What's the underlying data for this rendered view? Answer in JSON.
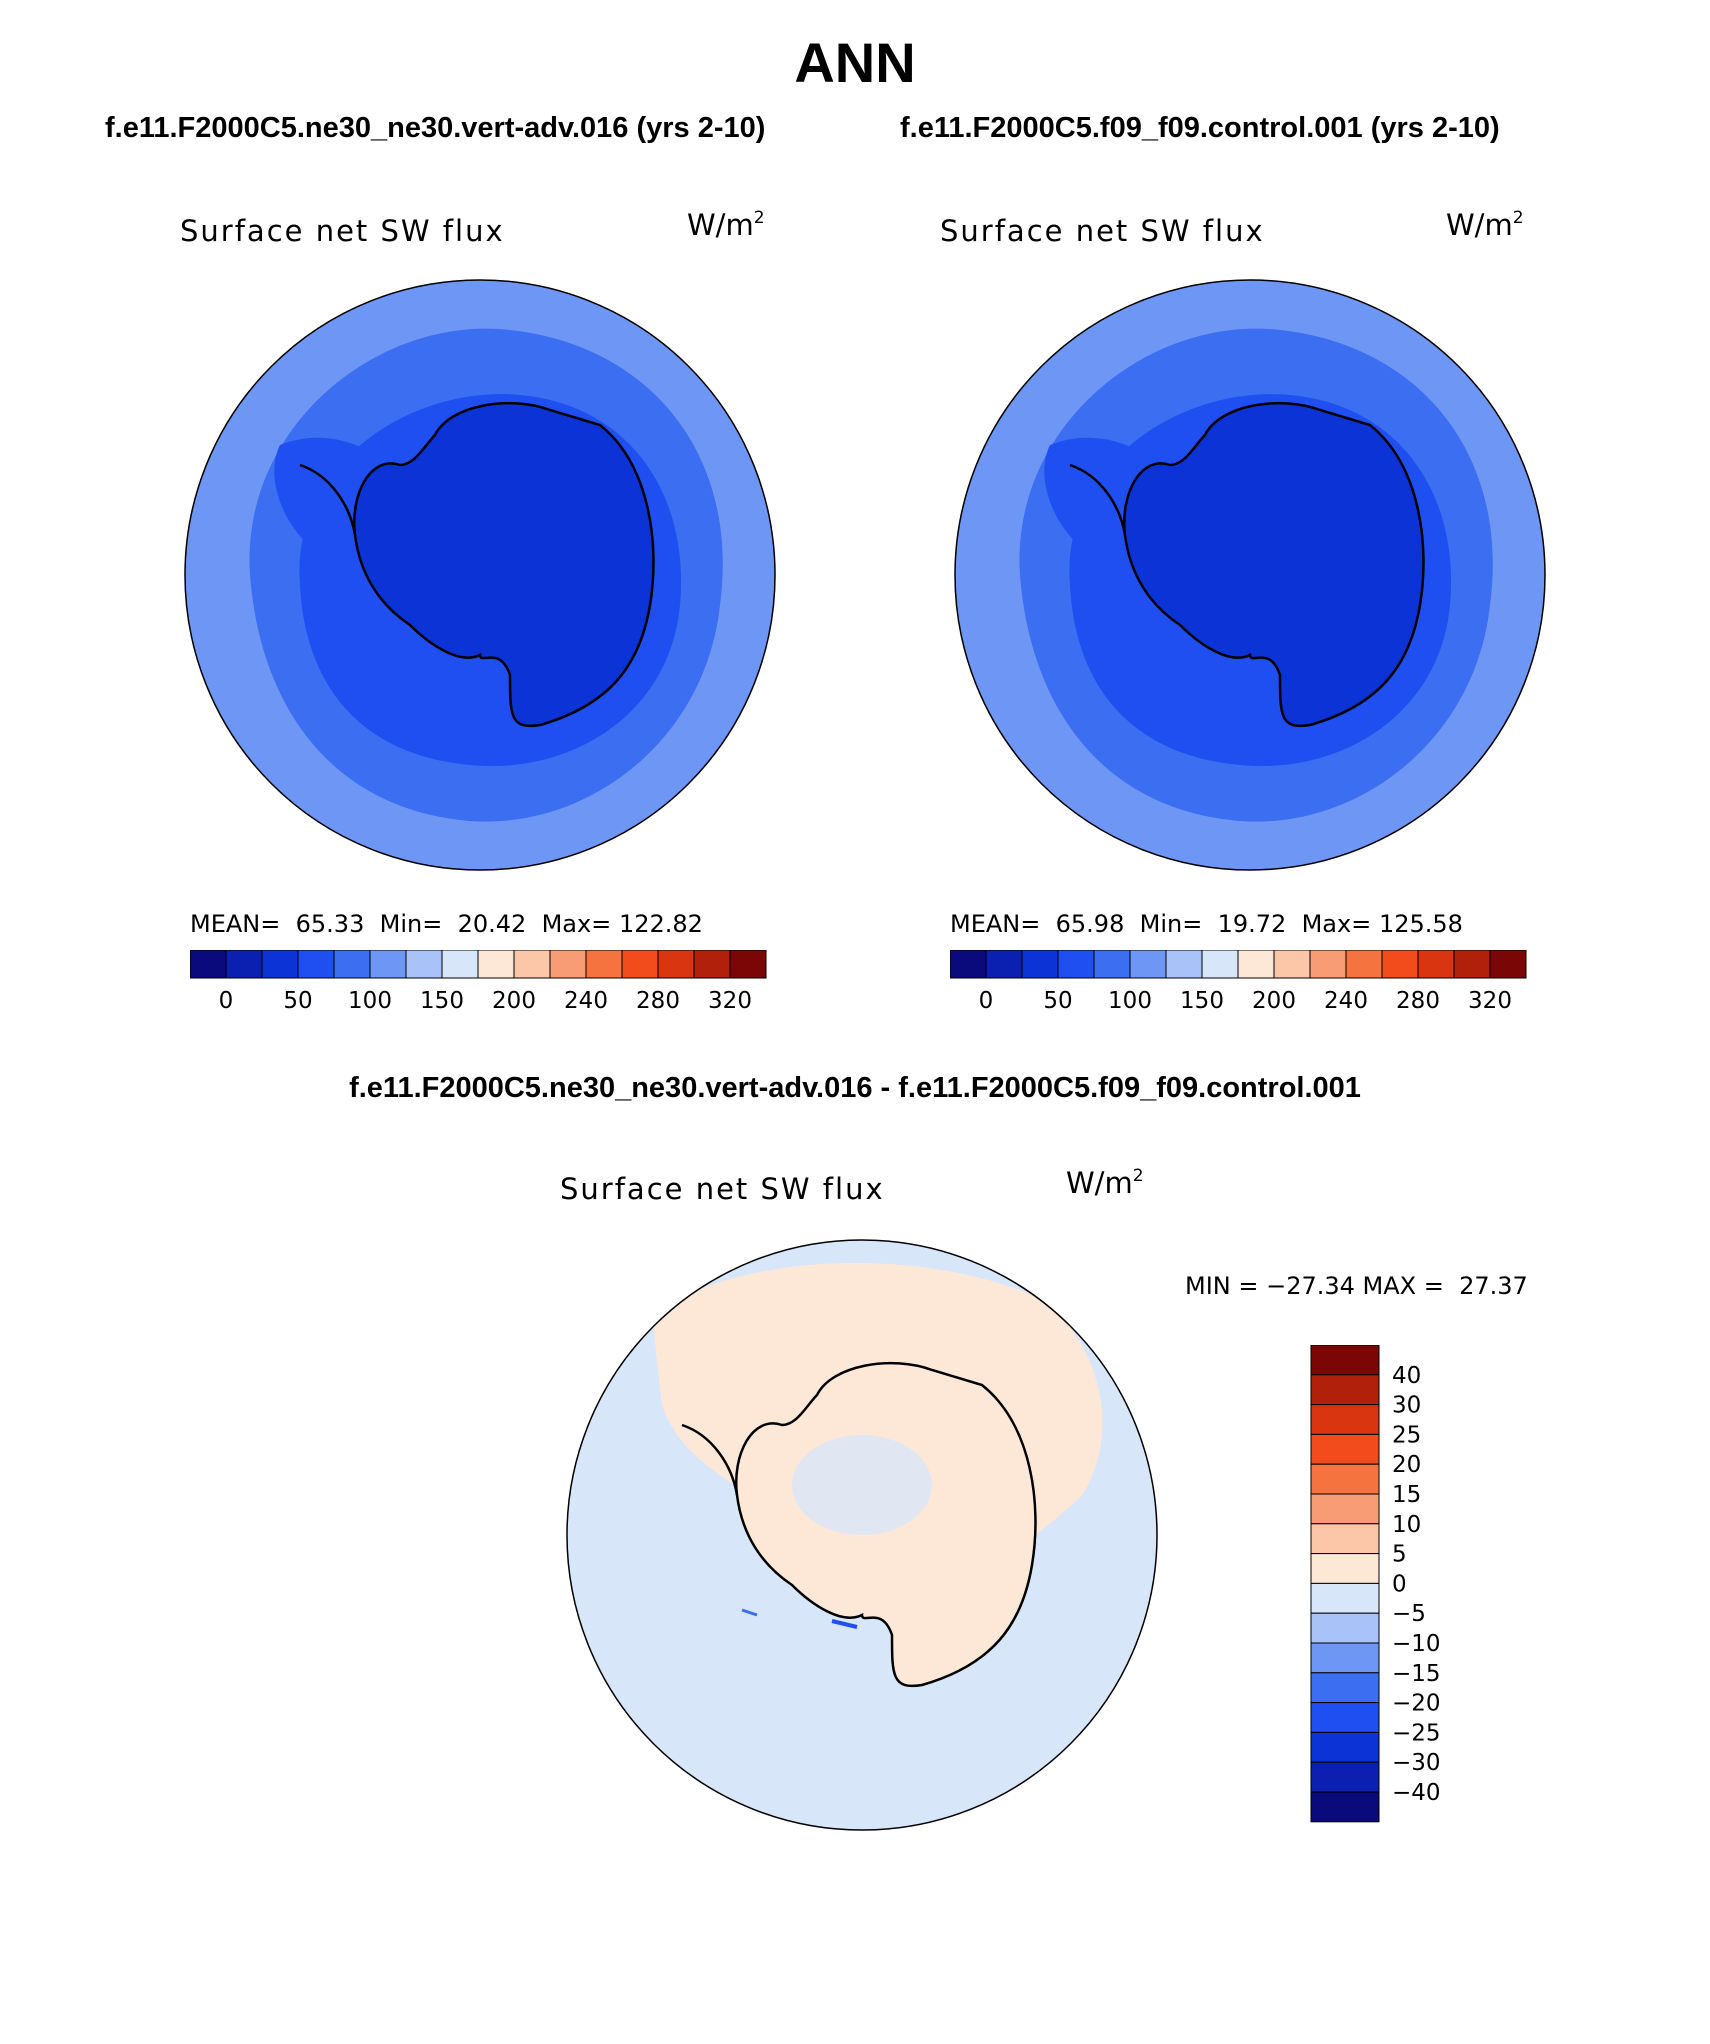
{
  "title": "ANN",
  "left_case": "f.e11.F2000C5.ne30_ne30.vert-adv.016 (yrs 2-10)",
  "right_case": "f.e11.F2000C5.f09_f09.control.001 (yrs 2-10)",
  "diff_title": "f.e11.F2000C5.ne30_ne30.vert-adv.016 - f.e11.F2000C5.f09_f09.control.001",
  "variable": "Surface net SW flux",
  "units_base": "W/m",
  "units_exp": "2",
  "panels": [
    {
      "mean_label": "MEAN=",
      "mean": "65.33",
      "min_label": "Min=",
      "min": "20.42",
      "max_label": "Max=",
      "max": "122.82"
    },
    {
      "mean_label": "MEAN=",
      "mean": "65.98",
      "min_label": "Min=",
      "min": "19.72",
      "max_label": "Max=",
      "max": "125.58"
    }
  ],
  "diff_stats": "MIN = −27.34 MAX =  27.37",
  "field_colorbar": {
    "colors": [
      "#0a0a7c",
      "#0b1fb0",
      "#0b33d6",
      "#1f4ff0",
      "#3b6ef0",
      "#6e97f5",
      "#a9c2f8",
      "#d8e6fa",
      "#fde8d8",
      "#fcc6a8",
      "#f79c74",
      "#f5733f",
      "#f24b1c",
      "#d93511",
      "#b0200b",
      "#7a0606"
    ],
    "tick_labels": [
      "0",
      "50",
      "100",
      "150",
      "200",
      "240",
      "280",
      "320"
    ]
  },
  "diff_colorbar": {
    "colors_top_to_bottom": [
      "#7a0606",
      "#b0200b",
      "#d93511",
      "#f24b1c",
      "#f5733f",
      "#f79c74",
      "#fcc6a8",
      "#fde8d8",
      "#d8e6fa",
      "#a9c2f8",
      "#6e97f5",
      "#3b6ef0",
      "#1f4ff0",
      "#0b33d6",
      "#0b1fb0",
      "#0a0a7c"
    ],
    "tick_labels": [
      "40",
      "30",
      "25",
      "20",
      "15",
      "10",
      "5",
      "0",
      "−5",
      "−10",
      "−15",
      "−20",
      "−25",
      "−30",
      "−40"
    ]
  }
}
